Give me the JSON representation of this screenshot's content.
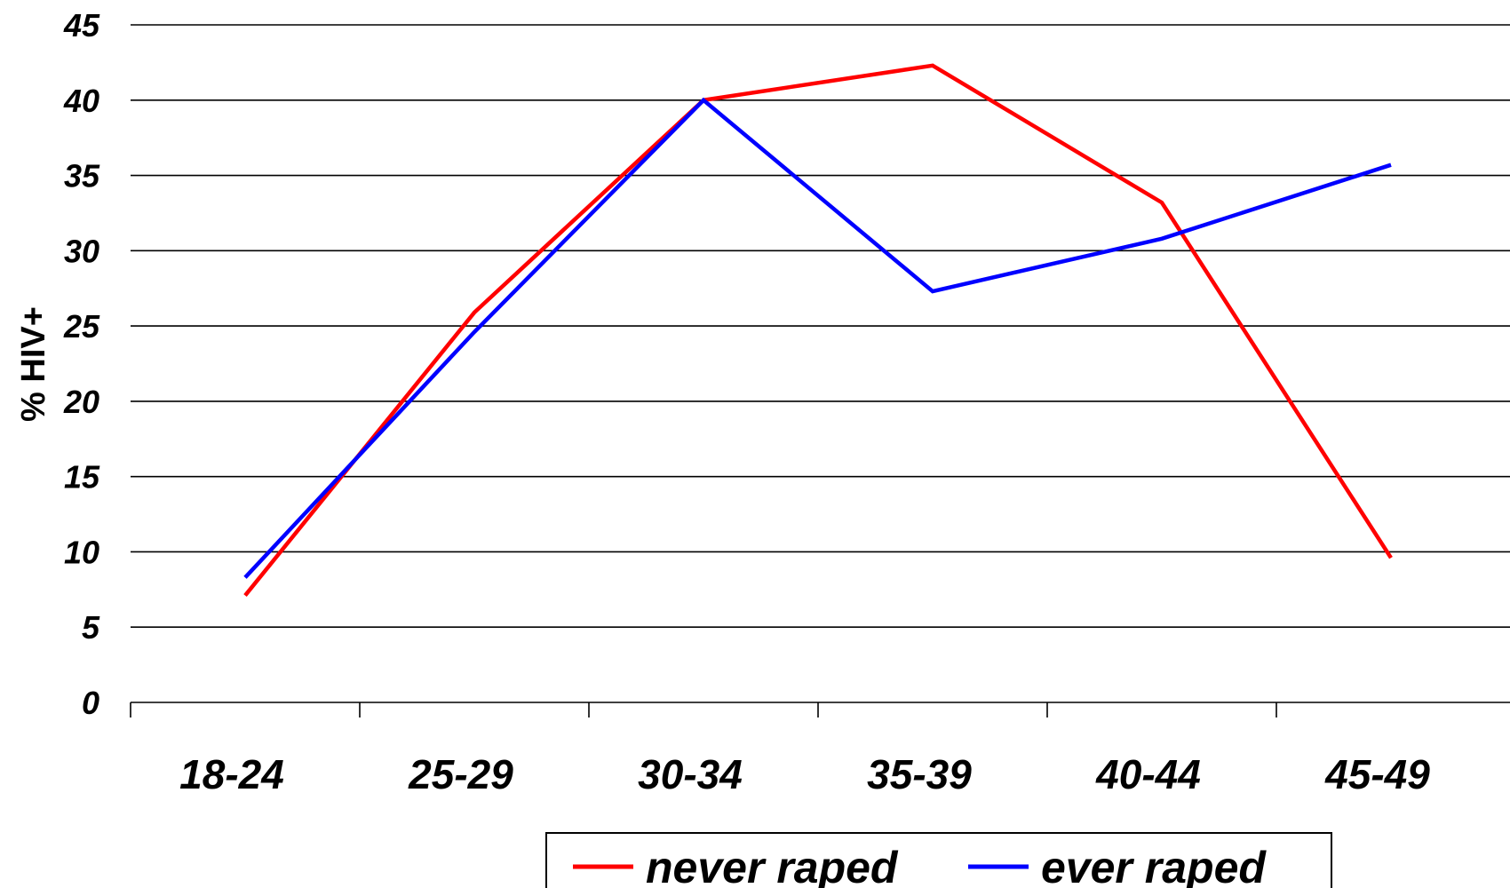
{
  "chart_data": {
    "type": "line",
    "title": "",
    "xlabel": "",
    "ylabel": "% HIV+",
    "categories": [
      "18-24",
      "25-29",
      "30-34",
      "35-39",
      "40-44",
      "45-49"
    ],
    "ylim": [
      0,
      45
    ],
    "yticks": [
      0,
      5,
      10,
      15,
      20,
      25,
      30,
      35,
      40,
      45
    ],
    "grid": true,
    "legend_position": "bottom",
    "series": [
      {
        "name": "never raped",
        "color": "#ff0000",
        "values": [
          7.1,
          25.9,
          40.0,
          42.3,
          33.2,
          9.6
        ]
      },
      {
        "name": "ever raped",
        "color": "#0000ff",
        "values": [
          8.3,
          24.6,
          40.0,
          27.3,
          30.8,
          35.7
        ]
      }
    ]
  }
}
